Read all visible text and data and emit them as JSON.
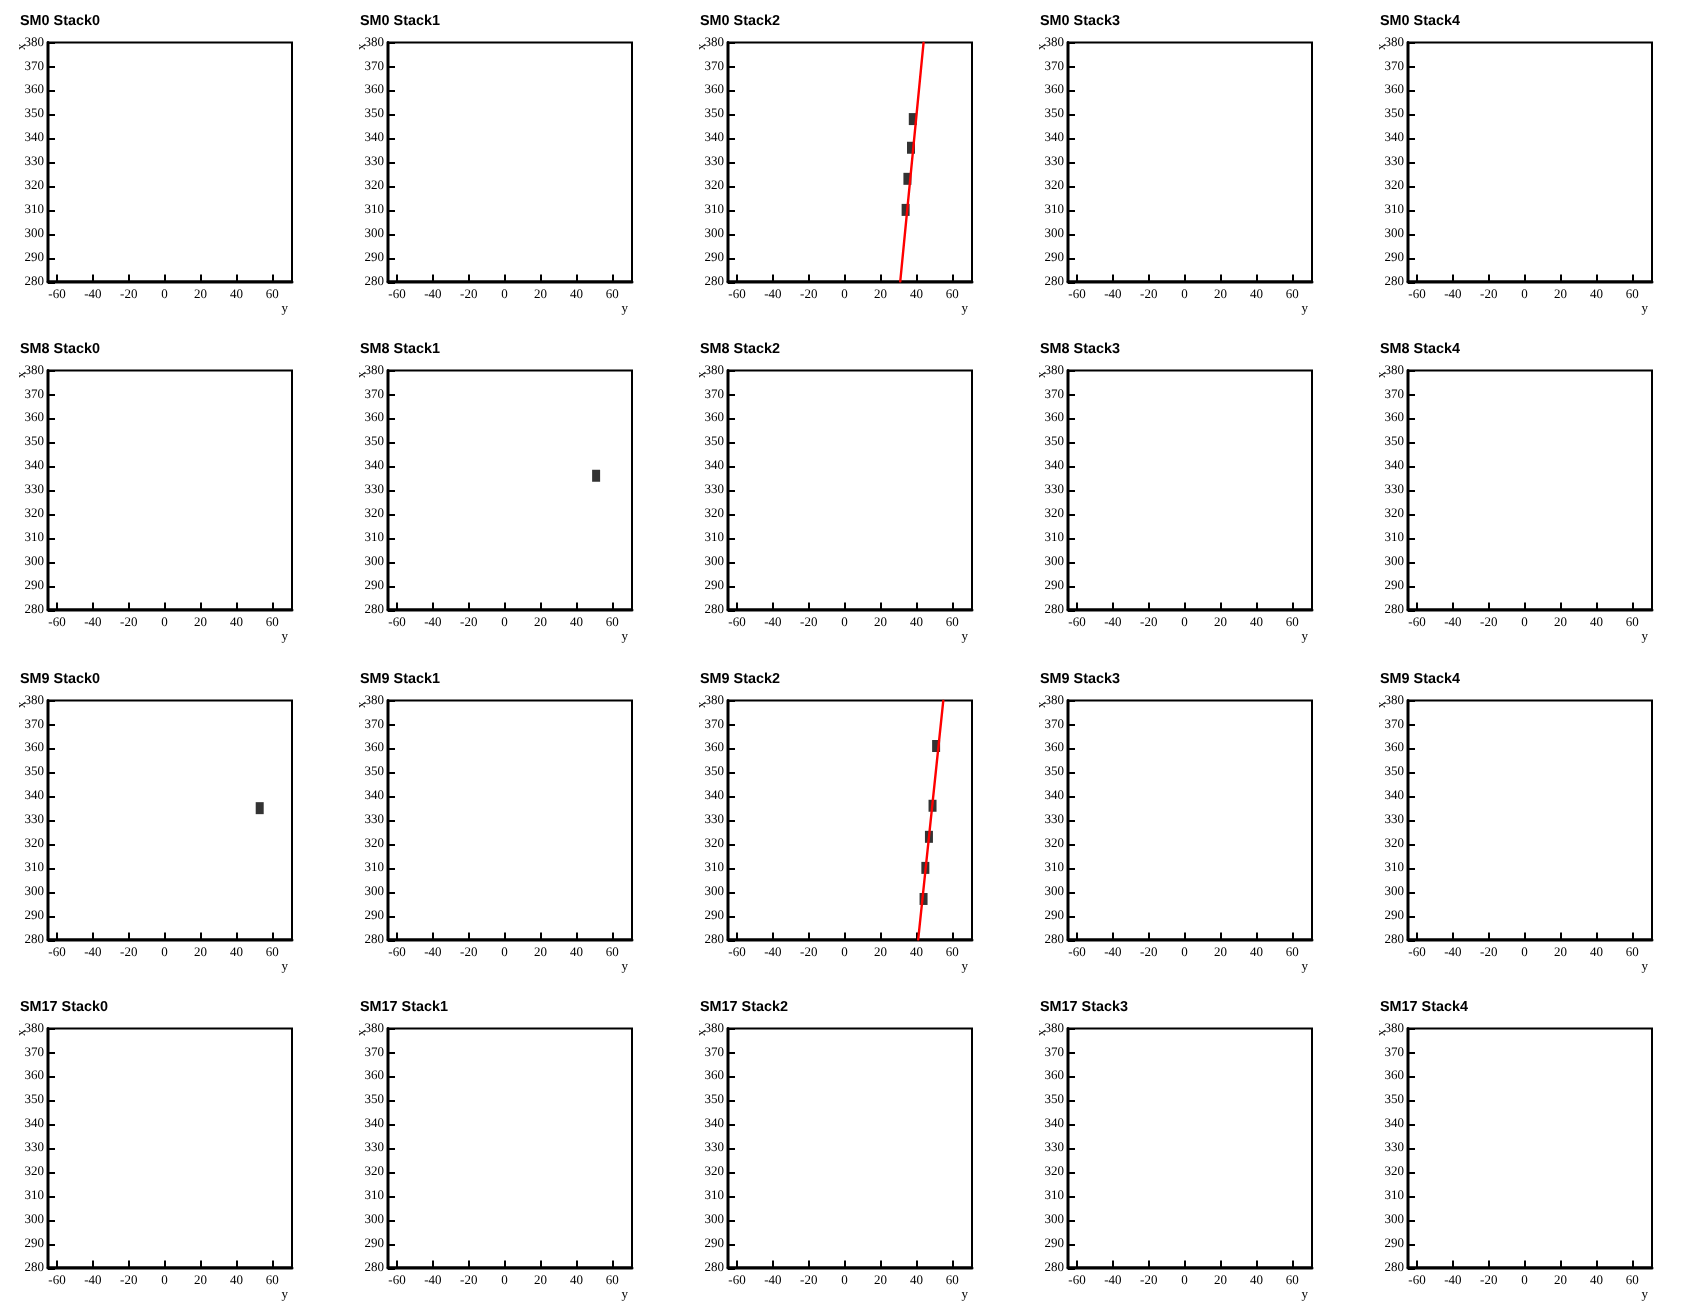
{
  "chart_data": [
    {
      "type": "scatter",
      "title": "SM0 Stack0",
      "xlabel": "y",
      "ylabel": "x",
      "xlim": [
        -65,
        71
      ],
      "ylim": [
        280,
        380
      ],
      "xticks": [
        -60,
        -40,
        -20,
        0,
        20,
        40,
        60
      ],
      "yticks": [
        280,
        290,
        300,
        310,
        320,
        330,
        340,
        350,
        360,
        370,
        380
      ],
      "grid": false
    },
    {
      "type": "scatter",
      "title": "SM0 Stack1",
      "xlabel": "y",
      "ylabel": "x",
      "xlim": [
        -65,
        71
      ],
      "ylim": [
        280,
        380
      ],
      "xticks": [
        -60,
        -40,
        -20,
        0,
        20,
        40,
        60
      ],
      "yticks": [
        280,
        290,
        300,
        310,
        320,
        330,
        340,
        350,
        360,
        370,
        380
      ],
      "grid": false
    },
    {
      "type": "scatter",
      "title": "SM0 Stack2",
      "xlabel": "y",
      "ylabel": "x",
      "xlim": [
        -65,
        71
      ],
      "ylim": [
        280,
        380
      ],
      "xticks": [
        -60,
        -40,
        -20,
        0,
        20,
        40,
        60
      ],
      "yticks": [
        280,
        290,
        300,
        310,
        320,
        330,
        340,
        350,
        360,
        370,
        380
      ],
      "grid": false,
      "marker": "square",
      "series": [
        {
          "color": "#000000",
          "x": [
            38,
            37,
            35,
            34
          ],
          "values": [
            348,
            336,
            323,
            310
          ]
        },
        {
          "type": "line",
          "color": "#ff0000",
          "marker": "none",
          "x": [
            31,
            44
          ],
          "values": [
            280,
            380
          ]
        }
      ]
    },
    {
      "type": "scatter",
      "title": "SM0 Stack3",
      "xlabel": "y",
      "ylabel": "x",
      "xlim": [
        -65,
        71
      ],
      "ylim": [
        280,
        380
      ],
      "xticks": [
        -60,
        -40,
        -20,
        0,
        20,
        40,
        60
      ],
      "yticks": [
        280,
        290,
        300,
        310,
        320,
        330,
        340,
        350,
        360,
        370,
        380
      ],
      "grid": false
    },
    {
      "type": "scatter",
      "title": "SM0 Stack4",
      "xlabel": "y",
      "ylabel": "x",
      "xlim": [
        -65,
        71
      ],
      "ylim": [
        280,
        380
      ],
      "xticks": [
        -60,
        -40,
        -20,
        0,
        20,
        40,
        60
      ],
      "yticks": [
        280,
        290,
        300,
        310,
        320,
        330,
        340,
        350,
        360,
        370,
        380
      ],
      "grid": false
    },
    {
      "type": "scatter",
      "title": "SM8 Stack0",
      "xlabel": "y",
      "ylabel": "x",
      "xlim": [
        -65,
        71
      ],
      "ylim": [
        280,
        380
      ],
      "xticks": [
        -60,
        -40,
        -20,
        0,
        20,
        40,
        60
      ],
      "yticks": [
        280,
        290,
        300,
        310,
        320,
        330,
        340,
        350,
        360,
        370,
        380
      ],
      "grid": false
    },
    {
      "type": "scatter",
      "title": "SM8 Stack1",
      "xlabel": "y",
      "ylabel": "x",
      "xlim": [
        -65,
        71
      ],
      "ylim": [
        280,
        380
      ],
      "xticks": [
        -60,
        -40,
        -20,
        0,
        20,
        40,
        60
      ],
      "yticks": [
        280,
        290,
        300,
        310,
        320,
        330,
        340,
        350,
        360,
        370,
        380
      ],
      "grid": false,
      "marker": "square",
      "series": [
        {
          "color": "#000000",
          "x": [
            51
          ],
          "values": [
            336
          ]
        }
      ]
    },
    {
      "type": "scatter",
      "title": "SM8 Stack2",
      "xlabel": "y",
      "ylabel": "x",
      "xlim": [
        -65,
        71
      ],
      "ylim": [
        280,
        380
      ],
      "xticks": [
        -60,
        -40,
        -20,
        0,
        20,
        40,
        60
      ],
      "yticks": [
        280,
        290,
        300,
        310,
        320,
        330,
        340,
        350,
        360,
        370,
        380
      ],
      "grid": false
    },
    {
      "type": "scatter",
      "title": "SM8 Stack3",
      "xlabel": "y",
      "ylabel": "x",
      "xlim": [
        -65,
        71
      ],
      "ylim": [
        280,
        380
      ],
      "xticks": [
        -60,
        -40,
        -20,
        0,
        20,
        40,
        60
      ],
      "yticks": [
        280,
        290,
        300,
        310,
        320,
        330,
        340,
        350,
        360,
        370,
        380
      ],
      "grid": false
    },
    {
      "type": "scatter",
      "title": "SM8 Stack4",
      "xlabel": "y",
      "ylabel": "x",
      "xlim": [
        -65,
        71
      ],
      "ylim": [
        280,
        380
      ],
      "xticks": [
        -60,
        -40,
        -20,
        0,
        20,
        40,
        60
      ],
      "yticks": [
        280,
        290,
        300,
        310,
        320,
        330,
        340,
        350,
        360,
        370,
        380
      ],
      "grid": false
    },
    {
      "type": "scatter",
      "title": "SM9 Stack0",
      "xlabel": "y",
      "ylabel": "x",
      "xlim": [
        -65,
        71
      ],
      "ylim": [
        280,
        380
      ],
      "xticks": [
        -60,
        -40,
        -20,
        0,
        20,
        40,
        60
      ],
      "yticks": [
        280,
        290,
        300,
        310,
        320,
        330,
        340,
        350,
        360,
        370,
        380
      ],
      "grid": false,
      "marker": "square",
      "series": [
        {
          "color": "#000000",
          "x": [
            53
          ],
          "values": [
            335
          ]
        }
      ]
    },
    {
      "type": "scatter",
      "title": "SM9 Stack1",
      "xlabel": "y",
      "ylabel": "x",
      "xlim": [
        -65,
        71
      ],
      "ylim": [
        280,
        380
      ],
      "xticks": [
        -60,
        -40,
        -20,
        0,
        20,
        40,
        60
      ],
      "yticks": [
        280,
        290,
        300,
        310,
        320,
        330,
        340,
        350,
        360,
        370,
        380
      ],
      "grid": false
    },
    {
      "type": "scatter",
      "title": "SM9 Stack2",
      "xlabel": "y",
      "ylabel": "x",
      "xlim": [
        -65,
        71
      ],
      "ylim": [
        280,
        380
      ],
      "xticks": [
        -60,
        -40,
        -20,
        0,
        20,
        40,
        60
      ],
      "yticks": [
        280,
        290,
        300,
        310,
        320,
        330,
        340,
        350,
        360,
        370,
        380
      ],
      "grid": false,
      "marker": "square",
      "series": [
        {
          "color": "#000000",
          "x": [
            51,
            49,
            47,
            45,
            44
          ],
          "values": [
            361,
            336,
            323,
            310,
            297
          ]
        },
        {
          "type": "line",
          "color": "#ff0000",
          "marker": "none",
          "x": [
            41,
            55
          ],
          "values": [
            280,
            380
          ]
        }
      ]
    },
    {
      "type": "scatter",
      "title": "SM9 Stack3",
      "xlabel": "y",
      "ylabel": "x",
      "xlim": [
        -65,
        71
      ],
      "ylim": [
        280,
        380
      ],
      "xticks": [
        -60,
        -40,
        -20,
        0,
        20,
        40,
        60
      ],
      "yticks": [
        280,
        290,
        300,
        310,
        320,
        330,
        340,
        350,
        360,
        370,
        380
      ],
      "grid": false
    },
    {
      "type": "scatter",
      "title": "SM9 Stack4",
      "xlabel": "y",
      "ylabel": "x",
      "xlim": [
        -65,
        71
      ],
      "ylim": [
        280,
        380
      ],
      "xticks": [
        -60,
        -40,
        -20,
        0,
        20,
        40,
        60
      ],
      "yticks": [
        280,
        290,
        300,
        310,
        320,
        330,
        340,
        350,
        360,
        370,
        380
      ],
      "grid": false
    },
    {
      "type": "scatter",
      "title": "SM17 Stack0",
      "xlabel": "y",
      "ylabel": "x",
      "xlim": [
        -65,
        71
      ],
      "ylim": [
        280,
        380
      ],
      "xticks": [
        -60,
        -40,
        -20,
        0,
        20,
        40,
        60
      ],
      "yticks": [
        280,
        290,
        300,
        310,
        320,
        330,
        340,
        350,
        360,
        370,
        380
      ],
      "grid": false
    },
    {
      "type": "scatter",
      "title": "SM17 Stack1",
      "xlabel": "y",
      "ylabel": "x",
      "xlim": [
        -65,
        71
      ],
      "ylim": [
        280,
        380
      ],
      "xticks": [
        -60,
        -40,
        -20,
        0,
        20,
        40,
        60
      ],
      "yticks": [
        280,
        290,
        300,
        310,
        320,
        330,
        340,
        350,
        360,
        370,
        380
      ],
      "grid": false
    },
    {
      "type": "scatter",
      "title": "SM17 Stack2",
      "xlabel": "y",
      "ylabel": "x",
      "xlim": [
        -65,
        71
      ],
      "ylim": [
        280,
        380
      ],
      "xticks": [
        -60,
        -40,
        -20,
        0,
        20,
        40,
        60
      ],
      "yticks": [
        280,
        290,
        300,
        310,
        320,
        330,
        340,
        350,
        360,
        370,
        380
      ],
      "grid": false
    },
    {
      "type": "scatter",
      "title": "SM17 Stack3",
      "xlabel": "y",
      "ylabel": "x",
      "xlim": [
        -65,
        71
      ],
      "ylim": [
        280,
        380
      ],
      "xticks": [
        -60,
        -40,
        -20,
        0,
        20,
        40,
        60
      ],
      "yticks": [
        280,
        290,
        300,
        310,
        320,
        330,
        340,
        350,
        360,
        370,
        380
      ],
      "grid": false
    },
    {
      "type": "scatter",
      "title": "SM17 Stack4",
      "xlabel": "y",
      "ylabel": "x",
      "xlim": [
        -65,
        71
      ],
      "ylim": [
        280,
        380
      ],
      "xticks": [
        -60,
        -40,
        -20,
        0,
        20,
        40,
        60
      ],
      "yticks": [
        280,
        290,
        300,
        310,
        320,
        330,
        340,
        350,
        360,
        370,
        380
      ],
      "grid": false
    }
  ]
}
